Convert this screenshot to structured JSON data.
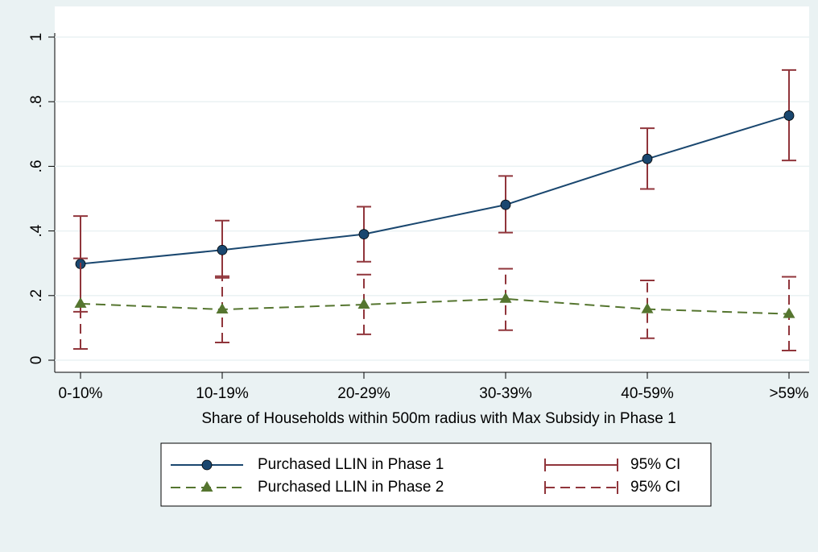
{
  "chart_data": {
    "type": "line",
    "x_label": "Share of Households within 500m radius with Max Subsidy in Phase 1",
    "categories": [
      "0-10%",
      "10-19%",
      "20-29%",
      "30-39%",
      "40-59%",
      ">59%"
    ],
    "ylim": [
      0,
      1
    ],
    "yticks": [
      0,
      {
        "value": 0.2,
        "label": ".2"
      },
      {
        "value": 0.4,
        "label": ".4"
      },
      {
        "value": 0.6,
        "label": ".6"
      },
      {
        "value": 0.8,
        "label": ".8"
      },
      1
    ],
    "grid": true,
    "legend": "bottom",
    "series": [
      {
        "name": "Purchased LLIN in Phase 1",
        "color": "#1a476f",
        "marker": "circle",
        "line_style": "solid",
        "values": [
          0.298,
          0.341,
          0.39,
          0.481,
          0.623,
          0.757
        ],
        "ci": {
          "name": "95% CI",
          "color": "#90353b",
          "line_style": "solid",
          "lower": [
            0.15,
            0.255,
            0.305,
            0.395,
            0.53,
            0.618
          ],
          "upper": [
            0.446,
            0.432,
            0.475,
            0.57,
            0.718,
            0.898
          ]
        }
      },
      {
        "name": "Purchased LLIN in Phase 2",
        "color": "#55752f",
        "marker": "triangle",
        "line_style": "dash",
        "values": [
          0.175,
          0.157,
          0.172,
          0.19,
          0.158,
          0.143
        ],
        "ci": {
          "name": "95% CI",
          "color": "#90353b",
          "line_style": "dash",
          "lower": [
            0.035,
            0.055,
            0.08,
            0.093,
            0.068,
            0.03
          ],
          "upper": [
            0.315,
            0.26,
            0.265,
            0.283,
            0.247,
            0.258
          ]
        }
      }
    ]
  }
}
